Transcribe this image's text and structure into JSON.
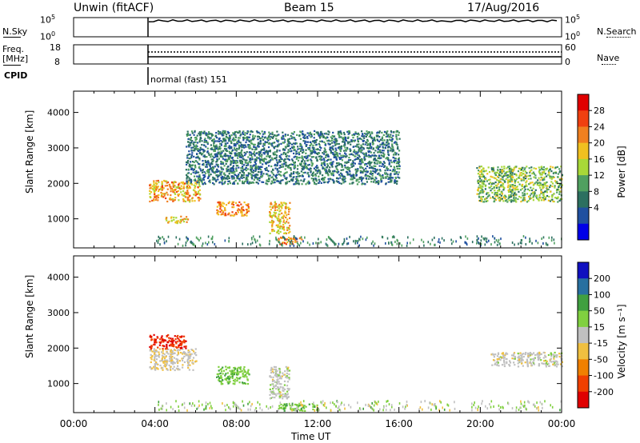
{
  "header": {
    "station": "Unwin (fitACF)",
    "beam": "Beam 15",
    "date": "17/Aug/2016"
  },
  "left_labels": {
    "nsky": "N.Sky",
    "freq_top": "Freq.",
    "freq_unit": "[MHz]",
    "cpid": "CPID"
  },
  "right_labels": {
    "nsearch": "N.Search",
    "nave": "Nave"
  },
  "noise_axis": {
    "left_ticks": [
      "10^5",
      "10^0"
    ],
    "right_ticks": [
      "10^5",
      "10^0"
    ]
  },
  "freq_axis": {
    "left_ticks": [
      "18",
      "8"
    ],
    "right_ticks": [
      "60",
      "0"
    ]
  },
  "cpid_label": "normal (fast) 151",
  "power_colorbar": {
    "label": "Power [dB]",
    "ticks": [
      "28",
      "24",
      "20",
      "16",
      "12",
      "8",
      "4"
    ],
    "colors": [
      "#e00000",
      "#f04010",
      "#f08020",
      "#f0c020",
      "#a8d838",
      "#50a060",
      "#2c7060",
      "#2050a0",
      "#0000e8"
    ]
  },
  "velocity_colorbar": {
    "label": "Velocity [m s⁻¹]",
    "ticks": [
      "200",
      "100",
      "50",
      "15",
      "-15",
      "-50",
      "-100",
      "-200"
    ],
    "colors": [
      "#1010c0",
      "#2870a0",
      "#40a040",
      "#80d040",
      "#c0c0c0",
      "#f0c040",
      "#f08000",
      "#f04000",
      "#e00000"
    ]
  },
  "chart_data": [
    {
      "type": "heatmap",
      "title": "Power",
      "xlabel": "Time UT",
      "ylabel": "Slant Range [km]",
      "x_range_hours": [
        0,
        24
      ],
      "ylim": [
        180,
        4600
      ],
      "yticks": [
        "1000",
        "2000",
        "3000",
        "4000"
      ],
      "xticks": [
        "00:00",
        "04:00",
        "08:00",
        "12:00",
        "16:00",
        "20:00",
        "00:00"
      ],
      "echo_regions": [
        {
          "t": [
            3.7,
            6.2
          ],
          "range_km": [
            1500,
            2100
          ],
          "power_db": 22
        },
        {
          "t": [
            4.5,
            5.6
          ],
          "range_km": [
            900,
            1100
          ],
          "power_db": 20
        },
        {
          "t": [
            7.0,
            8.6
          ],
          "range_km": [
            1100,
            1500
          ],
          "power_db": 24
        },
        {
          "t": [
            9.6,
            10.6
          ],
          "range_km": [
            600,
            1500
          ],
          "power_db": 20
        },
        {
          "t": [
            10.0,
            11.2
          ],
          "range_km": [
            300,
            500
          ],
          "power_db": 24
        },
        {
          "t": [
            5.5,
            16.0
          ],
          "range_km": [
            2000,
            3500
          ],
          "power_db": 8
        },
        {
          "t": [
            19.8,
            24.0
          ],
          "range_km": [
            1500,
            2500
          ],
          "power_db": 14
        }
      ]
    },
    {
      "type": "heatmap",
      "title": "Velocity",
      "xlabel": "Time UT",
      "ylabel": "Slant Range [km]",
      "x_range_hours": [
        0,
        24
      ],
      "ylim": [
        180,
        4600
      ],
      "yticks": [
        "1000",
        "2000",
        "3000",
        "4000"
      ],
      "xticks": [
        "00:00",
        "04:00",
        "08:00",
        "12:00",
        "16:00",
        "20:00",
        "00:00"
      ],
      "echo_regions": [
        {
          "t": [
            3.7,
            6.0
          ],
          "range_km": [
            1400,
            2000
          ],
          "velocity_ms": -10
        },
        {
          "t": [
            3.7,
            5.5
          ],
          "range_km": [
            2000,
            2400
          ],
          "velocity_ms": -200
        },
        {
          "t": [
            7.0,
            8.6
          ],
          "range_km": [
            1000,
            1500
          ],
          "velocity_ms": 40
        },
        {
          "t": [
            9.6,
            10.6
          ],
          "range_km": [
            600,
            1500
          ],
          "velocity_ms": 0
        },
        {
          "t": [
            10.0,
            12.0
          ],
          "range_km": [
            250,
            450
          ],
          "velocity_ms": 40
        },
        {
          "t": [
            20.5,
            24.0
          ],
          "range_km": [
            1500,
            1900
          ],
          "velocity_ms": 0
        }
      ]
    }
  ]
}
